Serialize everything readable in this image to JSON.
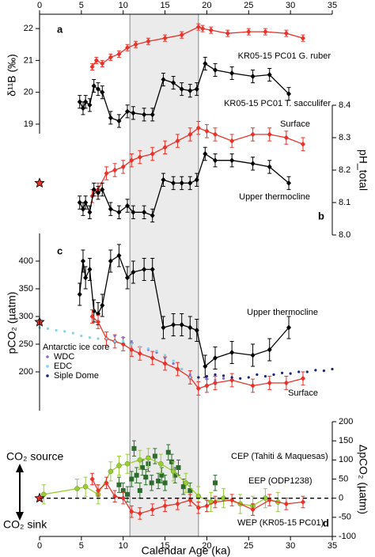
{
  "chart_data": [
    {
      "type": "line",
      "panel_label": "a",
      "y_label": "δ¹¹B (‰)",
      "y_side": "left",
      "xlim": [
        0,
        35
      ],
      "xticks": [
        0,
        5,
        10,
        15,
        20,
        25,
        30,
        35
      ],
      "x_axis": "top",
      "ylim": [
        18.7,
        22.45
      ],
      "yticks": [
        19,
        20,
        21,
        22
      ],
      "shaded_interval": [
        10.8,
        19
      ],
      "series": [
        {
          "name": "KR05-15 PC01 G. ruber",
          "color": "#e8322a",
          "marker": "diamond",
          "connect": true,
          "x": [
            6.3,
            6.8,
            7.5,
            8.5,
            9.5,
            10.5,
            11.5,
            13,
            15,
            17,
            19,
            19.5,
            20.5,
            22.5,
            25,
            27,
            29.5,
            31.5
          ],
          "values": [
            20.8,
            21.0,
            20.9,
            21.1,
            21.2,
            21.4,
            21.5,
            21.6,
            21.7,
            21.8,
            22.05,
            22.0,
            21.95,
            21.85,
            21.9,
            21.9,
            21.85,
            21.7
          ],
          "errors": [
            0.1,
            0.1,
            0.1,
            0.1,
            0.1,
            0.1,
            0.1,
            0.1,
            0.1,
            0.1,
            0.1,
            0.1,
            0.1,
            0.1,
            0.1,
            0.1,
            0.1,
            0.1
          ]
        },
        {
          "name": "KR05-15 PC01 T. sacculifer",
          "color": "#000000",
          "marker": "diamond",
          "connect": true,
          "x": [
            4.8,
            5.2,
            5.5,
            6,
            6.5,
            7,
            7.5,
            8.5,
            9.5,
            10.5,
            11.2,
            12.5,
            13.5,
            14.8,
            16,
            17,
            18,
            18.8,
            19.8,
            21,
            23,
            25.5,
            27.5,
            29.8
          ],
          "values": [
            19.7,
            19.5,
            19.7,
            19.6,
            20.2,
            20.1,
            20.0,
            19.2,
            19.1,
            19.4,
            19.35,
            19.3,
            19.3,
            20.4,
            20.3,
            20.1,
            20.05,
            20.1,
            20.9,
            20.7,
            20.6,
            20.5,
            20.55,
            19.95
          ],
          "errors": [
            0.2,
            0.2,
            0.2,
            0.2,
            0.2,
            0.2,
            0.2,
            0.2,
            0.2,
            0.2,
            0.2,
            0.2,
            0.2,
            0.2,
            0.2,
            0.2,
            0.2,
            0.2,
            0.2,
            0.2,
            0.2,
            0.2,
            0.2,
            0.2
          ]
        }
      ]
    },
    {
      "type": "line",
      "panel_label": "b",
      "y_label": "pH_total",
      "y_side": "right",
      "xlim": [
        0,
        35
      ],
      "ylim": [
        8.0,
        8.4
      ],
      "yticks": [
        {
          "value": 8,
          "label": "8.0"
        },
        8.1,
        8.2,
        8.3,
        8.4
      ],
      "reference_point": {
        "x": 0,
        "y": 8.16
      },
      "series": [
        {
          "name": "Surface",
          "color": "#e8322a",
          "marker": "diamond",
          "connect": true,
          "x": [
            6.3,
            7,
            8,
            9,
            10,
            11,
            12,
            13.5,
            15,
            16.5,
            18,
            19,
            20,
            21,
            23,
            25.5,
            27.5,
            29.5,
            31.5
          ],
          "values": [
            8.12,
            8.14,
            8.19,
            8.2,
            8.21,
            8.23,
            8.24,
            8.25,
            8.27,
            8.29,
            8.31,
            8.33,
            8.32,
            8.31,
            8.29,
            8.31,
            8.31,
            8.3,
            8.28
          ],
          "errors": [
            0.02,
            0.02,
            0.02,
            0.02,
            0.02,
            0.02,
            0.02,
            0.02,
            0.02,
            0.02,
            0.02,
            0.02,
            0.02,
            0.02,
            0.02,
            0.02,
            0.02,
            0.02,
            0.02
          ]
        },
        {
          "name": "Upper thermocline",
          "color": "#000000",
          "marker": "diamond",
          "connect": true,
          "x": [
            4.8,
            5.2,
            5.5,
            6,
            6.5,
            7,
            7.5,
            8.5,
            9.5,
            10.5,
            11.2,
            12.5,
            13.5,
            14.8,
            16,
            17,
            18,
            18.8,
            19.8,
            21,
            23,
            25.5,
            27.5,
            29.8
          ],
          "values": [
            8.1,
            8.08,
            8.1,
            8.07,
            8.14,
            8.13,
            8.14,
            8.08,
            8.07,
            8.09,
            8.07,
            8.07,
            8.06,
            8.17,
            8.16,
            8.16,
            8.16,
            8.17,
            8.25,
            8.23,
            8.23,
            8.22,
            8.21,
            8.16
          ],
          "errors": [
            0.02,
            0.02,
            0.02,
            0.02,
            0.02,
            0.02,
            0.02,
            0.02,
            0.02,
            0.02,
            0.02,
            0.02,
            0.02,
            0.02,
            0.02,
            0.02,
            0.02,
            0.02,
            0.02,
            0.02,
            0.02,
            0.02,
            0.02,
            0.02
          ]
        }
      ]
    },
    {
      "type": "line",
      "panel_label": "c",
      "y_label": "pCO₂ (µatm)",
      "y_side": "left",
      "xlim": [
        0,
        35
      ],
      "ylim": [
        130,
        450
      ],
      "yticks": [
        200,
        250,
        300,
        350,
        400
      ],
      "reference_point": {
        "x": 0,
        "y": 290
      },
      "legend_title": "Antarctic ice core",
      "series": [
        {
          "name": "Upper thermocline",
          "color": "#000000",
          "marker": "diamond",
          "connect": true,
          "x": [
            4.8,
            5.2,
            5.5,
            6,
            6.5,
            7,
            7.5,
            8.5,
            9.5,
            10.5,
            11.2,
            12.5,
            13.5,
            14.8,
            16,
            17,
            18,
            18.8,
            19.8,
            21,
            23,
            25.5,
            27.5,
            29.8
          ],
          "values": [
            340,
            400,
            370,
            385,
            310,
            305,
            320,
            400,
            410,
            370,
            380,
            385,
            385,
            280,
            285,
            285,
            280,
            275,
            210,
            225,
            235,
            230,
            240,
            280
          ],
          "errors": [
            20,
            20,
            20,
            20,
            20,
            20,
            20,
            20,
            20,
            20,
            20,
            20,
            20,
            20,
            20,
            20,
            20,
            20,
            20,
            20,
            20,
            20,
            20,
            20
          ]
        },
        {
          "name": "Surface",
          "color": "#e8322a",
          "marker": "diamond",
          "connect": true,
          "x": [
            6.3,
            7,
            8,
            9,
            10,
            11,
            12,
            13.5,
            15,
            16.5,
            18,
            19,
            20,
            21,
            23,
            25.5,
            27.5,
            29.5,
            31.5
          ],
          "values": [
            300,
            290,
            260,
            255,
            250,
            240,
            233,
            225,
            215,
            205,
            190,
            170,
            175,
            180,
            185,
            175,
            180,
            180,
            188
          ],
          "errors": [
            12,
            12,
            12,
            12,
            12,
            12,
            12,
            12,
            12,
            12,
            12,
            12,
            12,
            12,
            12,
            12,
            12,
            12,
            12
          ]
        },
        {
          "name": "WDC",
          "color": "#8a6fd0",
          "marker": "dot",
          "connect": false,
          "x": [
            9,
            10,
            11,
            12,
            13,
            14,
            15,
            16,
            17,
            18,
            19,
            20,
            21,
            22
          ],
          "values": [
            265,
            262,
            255,
            245,
            240,
            235,
            225,
            215,
            205,
            195,
            190,
            187,
            185,
            188
          ]
        },
        {
          "name": "EDC",
          "color": "#7fd6e8",
          "marker": "dot",
          "connect": false,
          "x": [
            0,
            1,
            2,
            3,
            4,
            5,
            6,
            7,
            8,
            9,
            10,
            11,
            12,
            13,
            14,
            15,
            16,
            17,
            18
          ],
          "values": [
            280,
            278,
            275,
            273,
            270,
            265,
            262,
            260,
            260,
            255,
            255,
            250,
            245,
            242,
            238,
            230,
            220,
            205,
            190
          ]
        },
        {
          "name": "Siple Dome",
          "color": "#1a237e",
          "marker": "dot",
          "connect": false,
          "x": [
            19,
            20,
            21,
            22,
            23,
            24,
            25,
            26,
            27,
            28,
            29,
            30,
            31,
            32,
            33,
            34,
            35
          ],
          "values": [
            190,
            192,
            195,
            193,
            190,
            188,
            190,
            195,
            192,
            195,
            198,
            197,
            200,
            200,
            203,
            202,
            205
          ]
        }
      ]
    },
    {
      "type": "line",
      "panel_label": "d",
      "y_label": "ΔpCO₂ (µatm)",
      "y_side": "right",
      "xlim": [
        0,
        35
      ],
      "xticks": [
        0,
        5,
        10,
        15,
        20,
        25,
        30,
        35
      ],
      "x_axis": "bottom",
      "x_label": "Calendar Age (ka)",
      "ylim": [
        -100,
        200
      ],
      "yticks": [
        -100,
        -50,
        0,
        50,
        100,
        150,
        200
      ],
      "zero_line": true,
      "reference_point": {
        "x": 0,
        "y": 0
      },
      "annotations": [
        "CO₂ source",
        "CO₂ sink"
      ],
      "series": [
        {
          "name": "CEP (Tahiti & Maquesas)",
          "color": "#2e6b2e",
          "marker": "square",
          "connect": false,
          "x": [
            9.5,
            10,
            10.5,
            11,
            11.3,
            11.6,
            12,
            12.3,
            12.7,
            13,
            13.4,
            13.8,
            14.2,
            14.6,
            15,
            15.4,
            15.8,
            16.2,
            16.6,
            17.2,
            18,
            21
          ],
          "values": [
            35,
            20,
            10,
            50,
            130,
            60,
            20,
            80,
            55,
            90,
            40,
            110,
            45,
            60,
            40,
            120,
            95,
            60,
            80,
            30,
            20,
            40
          ],
          "errors": [
            20,
            20,
            20,
            20,
            20,
            20,
            20,
            20,
            20,
            20,
            20,
            20,
            20,
            20,
            20,
            20,
            20,
            20,
            20,
            20,
            20,
            20
          ]
        },
        {
          "name": "EEP (ODP1238)",
          "color": "#9acd32",
          "marker": "circle",
          "connect": true,
          "x": [
            0.5,
            4.5,
            5.5,
            7,
            8.5,
            9.5,
            10.5,
            12,
            13,
            14.5,
            16,
            17.5,
            19,
            20.5,
            22,
            24,
            25.5,
            27,
            28.5
          ],
          "values": [
            10,
            25,
            30,
            10,
            70,
            85,
            90,
            100,
            105,
            90,
            70,
            40,
            5,
            -10,
            0,
            -15,
            -20,
            0,
            -10
          ],
          "errors": [
            25,
            25,
            25,
            25,
            25,
            25,
            25,
            25,
            25,
            25,
            25,
            25,
            25,
            25,
            25,
            25,
            25,
            25,
            25
          ]
        },
        {
          "name": "WEP (KR05-15 PC01)",
          "color": "#e8322a",
          "marker": "diamond",
          "connect": true,
          "x": [
            6.3,
            7,
            8,
            9,
            10,
            11,
            12,
            13.5,
            15,
            16.5,
            18,
            19,
            20,
            21,
            23,
            25.5,
            27.5,
            29.5,
            31.5
          ],
          "values": [
            50,
            20,
            40,
            5,
            0,
            -35,
            -40,
            -30,
            -20,
            -15,
            -5,
            -25,
            -20,
            -10,
            -5,
            -30,
            -5,
            -15,
            -10
          ],
          "errors": [
            15,
            15,
            15,
            15,
            15,
            15,
            15,
            15,
            15,
            15,
            15,
            15,
            15,
            15,
            15,
            15,
            15,
            15,
            15
          ]
        }
      ]
    }
  ]
}
